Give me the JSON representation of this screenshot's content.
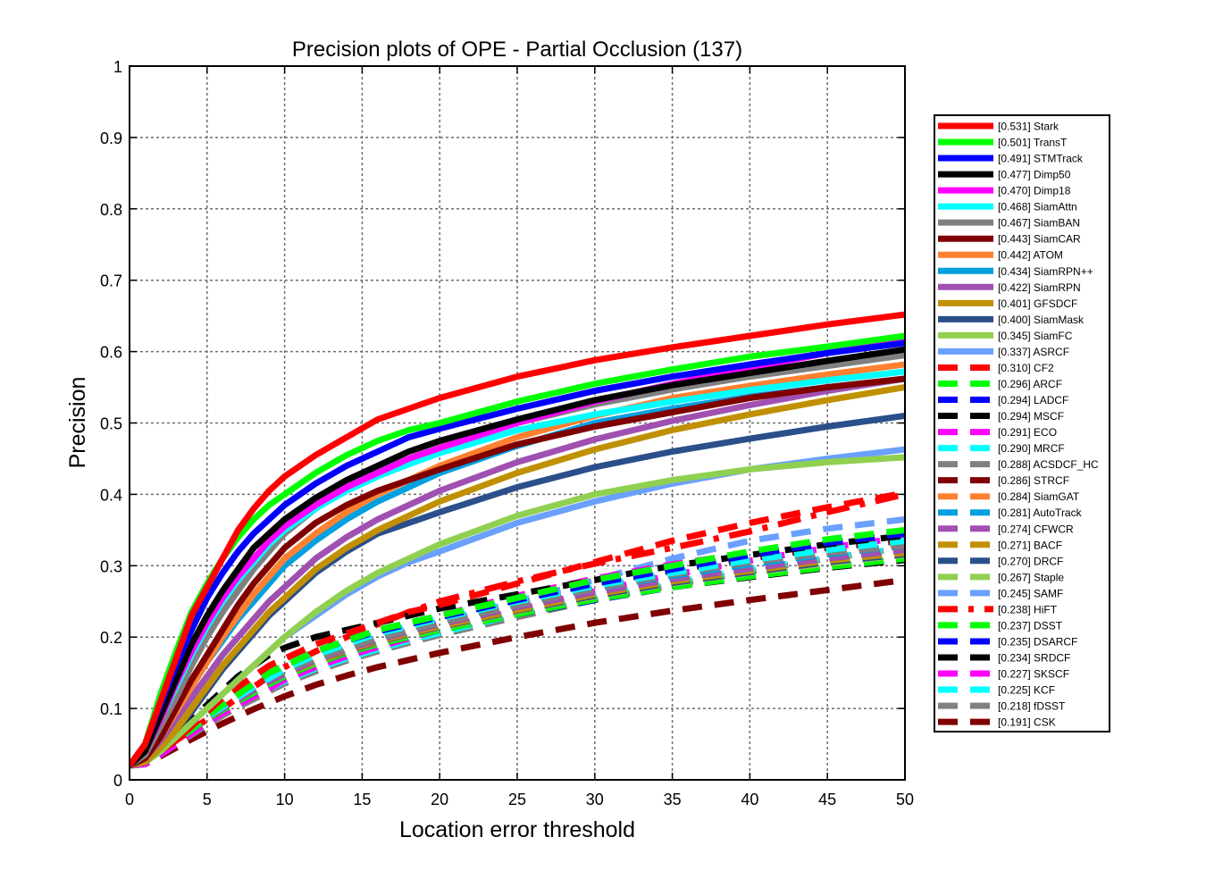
{
  "chart_data": {
    "type": "line",
    "title": "Precision plots of OPE - Partial Occlusion (137)",
    "xlabel": "Location error threshold",
    "ylabel": "Precision",
    "xlim": [
      0,
      50
    ],
    "ylim": [
      0,
      1
    ],
    "xticks": [
      "0",
      "5",
      "10",
      "15",
      "20",
      "25",
      "30",
      "35",
      "40",
      "45",
      "50"
    ],
    "yticks": [
      "0",
      "0.1",
      "0.2",
      "0.3",
      "0.4",
      "0.5",
      "0.6",
      "0.7",
      "0.8",
      "0.9",
      "1"
    ],
    "grid": true,
    "legend_position": "right",
    "x": [
      0,
      1,
      2,
      3,
      4,
      5,
      6,
      7,
      8,
      9,
      10,
      12,
      14,
      16,
      18,
      20,
      25,
      30,
      35,
      40,
      45,
      50
    ],
    "series": [
      {
        "name": "[0.531] Stark",
        "color": "#ff0000",
        "style": "solid",
        "values": [
          0.02,
          0.05,
          0.11,
          0.17,
          0.23,
          0.27,
          0.31,
          0.35,
          0.38,
          0.405,
          0.425,
          0.455,
          0.48,
          0.505,
          0.52,
          0.535,
          0.565,
          0.588,
          0.606,
          0.622,
          0.638,
          0.652
        ]
      },
      {
        "name": "[0.501] TransT",
        "color": "#00ff00",
        "style": "solid",
        "values": [
          0.02,
          0.05,
          0.12,
          0.18,
          0.235,
          0.275,
          0.31,
          0.34,
          0.365,
          0.385,
          0.4,
          0.43,
          0.455,
          0.475,
          0.49,
          0.5,
          0.53,
          0.555,
          0.575,
          0.593,
          0.607,
          0.622
        ]
      },
      {
        "name": "[0.491] STMTrack",
        "color": "#0000ff",
        "style": "solid",
        "values": [
          0.02,
          0.05,
          0.105,
          0.16,
          0.21,
          0.255,
          0.29,
          0.32,
          0.345,
          0.365,
          0.385,
          0.415,
          0.44,
          0.46,
          0.48,
          0.492,
          0.52,
          0.545,
          0.565,
          0.582,
          0.598,
          0.612
        ]
      },
      {
        "name": "[0.477] Dimp50",
        "color": "#000000",
        "style": "solid",
        "values": [
          0.02,
          0.04,
          0.09,
          0.14,
          0.19,
          0.23,
          0.265,
          0.295,
          0.325,
          0.345,
          0.365,
          0.395,
          0.42,
          0.44,
          0.46,
          0.475,
          0.505,
          0.532,
          0.553,
          0.57,
          0.587,
          0.603
        ]
      },
      {
        "name": "[0.470] Dimp18",
        "color": "#ff00ff",
        "style": "solid",
        "values": [
          0.02,
          0.04,
          0.085,
          0.135,
          0.18,
          0.22,
          0.255,
          0.285,
          0.31,
          0.335,
          0.355,
          0.385,
          0.41,
          0.43,
          0.45,
          0.465,
          0.5,
          0.53,
          0.555,
          0.577,
          0.598,
          0.617
        ]
      },
      {
        "name": "[0.468] SiamAttn",
        "color": "#00ffff",
        "style": "solid",
        "values": [
          0.02,
          0.04,
          0.085,
          0.13,
          0.175,
          0.215,
          0.25,
          0.28,
          0.305,
          0.33,
          0.35,
          0.38,
          0.405,
          0.425,
          0.442,
          0.458,
          0.49,
          0.512,
          0.53,
          0.546,
          0.56,
          0.572
        ]
      },
      {
        "name": "[0.467] SiamBAN",
        "color": "#808080",
        "style": "solid",
        "values": [
          0.02,
          0.035,
          0.075,
          0.115,
          0.16,
          0.2,
          0.235,
          0.265,
          0.295,
          0.32,
          0.345,
          0.38,
          0.41,
          0.432,
          0.45,
          0.468,
          0.5,
          0.526,
          0.547,
          0.565,
          0.58,
          0.595
        ]
      },
      {
        "name": "[0.443] SiamCAR",
        "color": "#800000",
        "style": "solid",
        "values": [
          0.02,
          0.03,
          0.06,
          0.1,
          0.14,
          0.175,
          0.21,
          0.245,
          0.275,
          0.3,
          0.325,
          0.36,
          0.385,
          0.405,
          0.42,
          0.435,
          0.47,
          0.495,
          0.515,
          0.535,
          0.55,
          0.562
        ]
      },
      {
        "name": "[0.442] ATOM",
        "color": "#ff8030",
        "style": "solid",
        "values": [
          0.02,
          0.03,
          0.06,
          0.095,
          0.13,
          0.165,
          0.2,
          0.23,
          0.26,
          0.285,
          0.31,
          0.345,
          0.375,
          0.4,
          0.42,
          0.44,
          0.48,
          0.51,
          0.535,
          0.552,
          0.568,
          0.582
        ]
      },
      {
        "name": "[0.434] SiamRPN++",
        "color": "#00a0e0",
        "style": "solid",
        "values": [
          0.02,
          0.03,
          0.06,
          0.095,
          0.13,
          0.165,
          0.195,
          0.225,
          0.25,
          0.275,
          0.3,
          0.335,
          0.365,
          0.39,
          0.41,
          0.43,
          0.468,
          0.5,
          0.52,
          0.537,
          0.55,
          0.562
        ]
      },
      {
        "name": "[0.422] SiamRPN",
        "color": "#a050b0",
        "style": "solid",
        "values": [
          0.02,
          0.03,
          0.055,
          0.085,
          0.115,
          0.145,
          0.175,
          0.2,
          0.225,
          0.25,
          0.27,
          0.31,
          0.34,
          0.365,
          0.385,
          0.405,
          0.445,
          0.477,
          0.503,
          0.525,
          0.545,
          0.562
        ]
      },
      {
        "name": "[0.401] GFSDCF",
        "color": "#c09000",
        "style": "solid",
        "values": [
          0.02,
          0.025,
          0.045,
          0.07,
          0.1,
          0.13,
          0.16,
          0.185,
          0.21,
          0.235,
          0.255,
          0.295,
          0.325,
          0.35,
          0.37,
          0.39,
          0.43,
          0.463,
          0.49,
          0.512,
          0.532,
          0.55
        ]
      },
      {
        "name": "[0.400] SiamMask",
        "color": "#2a4f8a",
        "style": "solid",
        "values": [
          0.02,
          0.025,
          0.045,
          0.07,
          0.095,
          0.125,
          0.155,
          0.18,
          0.205,
          0.23,
          0.25,
          0.29,
          0.32,
          0.345,
          0.36,
          0.375,
          0.41,
          0.438,
          0.46,
          0.478,
          0.495,
          0.51
        ]
      },
      {
        "name": "[0.345] SiamFC",
        "color": "#90d050",
        "style": "solid",
        "values": [
          0.02,
          0.025,
          0.04,
          0.06,
          0.08,
          0.1,
          0.12,
          0.14,
          0.16,
          0.18,
          0.2,
          0.235,
          0.265,
          0.29,
          0.31,
          0.33,
          0.37,
          0.4,
          0.42,
          0.435,
          0.445,
          0.452
        ]
      },
      {
        "name": "[0.337] ASRCF",
        "color": "#6aa0ff",
        "style": "solid",
        "values": [
          0.02,
          0.025,
          0.04,
          0.06,
          0.08,
          0.1,
          0.12,
          0.14,
          0.16,
          0.18,
          0.2,
          0.23,
          0.26,
          0.285,
          0.305,
          0.32,
          0.36,
          0.39,
          0.415,
          0.435,
          0.45,
          0.463
        ]
      },
      {
        "name": "[0.310] CF2",
        "color": "#ff0000",
        "style": "dash",
        "values": [
          0.02,
          0.025,
          0.04,
          0.055,
          0.075,
          0.095,
          0.115,
          0.13,
          0.145,
          0.16,
          0.17,
          0.19,
          0.205,
          0.22,
          0.235,
          0.245,
          0.275,
          0.305,
          0.335,
          0.36,
          0.382,
          0.402
        ]
      },
      {
        "name": "[0.296] ARCF",
        "color": "#00ff00",
        "style": "dash",
        "values": [
          0.02,
          0.025,
          0.04,
          0.055,
          0.07,
          0.09,
          0.105,
          0.12,
          0.135,
          0.15,
          0.16,
          0.18,
          0.195,
          0.21,
          0.22,
          0.23,
          0.255,
          0.28,
          0.3,
          0.32,
          0.337,
          0.35
        ]
      },
      {
        "name": "[0.294] LADCF",
        "color": "#0000ff",
        "style": "dash",
        "values": [
          0.02,
          0.025,
          0.04,
          0.055,
          0.07,
          0.09,
          0.105,
          0.12,
          0.135,
          0.15,
          0.16,
          0.18,
          0.195,
          0.208,
          0.218,
          0.228,
          0.252,
          0.275,
          0.295,
          0.315,
          0.332,
          0.345
        ]
      },
      {
        "name": "[0.294] MSCF",
        "color": "#000000",
        "style": "dash",
        "values": [
          0.02,
          0.025,
          0.045,
          0.065,
          0.085,
          0.105,
          0.125,
          0.145,
          0.16,
          0.175,
          0.185,
          0.2,
          0.21,
          0.22,
          0.23,
          0.24,
          0.26,
          0.28,
          0.3,
          0.315,
          0.33,
          0.342
        ]
      },
      {
        "name": "[0.291] ECO",
        "color": "#ff00ff",
        "style": "dash",
        "values": [
          0.02,
          0.025,
          0.04,
          0.055,
          0.07,
          0.09,
          0.105,
          0.12,
          0.135,
          0.15,
          0.16,
          0.18,
          0.195,
          0.21,
          0.22,
          0.23,
          0.258,
          0.282,
          0.302,
          0.318,
          0.332,
          0.345
        ]
      },
      {
        "name": "[0.290] MRCF",
        "color": "#00ffff",
        "style": "dash",
        "values": [
          0.02,
          0.025,
          0.04,
          0.055,
          0.07,
          0.088,
          0.102,
          0.116,
          0.13,
          0.142,
          0.155,
          0.175,
          0.19,
          0.205,
          0.215,
          0.226,
          0.25,
          0.272,
          0.29,
          0.308,
          0.322,
          0.335
        ]
      },
      {
        "name": "[0.288] ACSDCF_HC",
        "color": "#808080",
        "style": "dash",
        "values": [
          0.02,
          0.025,
          0.04,
          0.055,
          0.07,
          0.088,
          0.102,
          0.116,
          0.13,
          0.142,
          0.152,
          0.17,
          0.185,
          0.198,
          0.21,
          0.22,
          0.245,
          0.268,
          0.288,
          0.305,
          0.318,
          0.328
        ]
      },
      {
        "name": "[0.286] STRCF",
        "color": "#800000",
        "style": "dash",
        "values": [
          0.02,
          0.025,
          0.04,
          0.055,
          0.07,
          0.09,
          0.105,
          0.12,
          0.135,
          0.15,
          0.16,
          0.18,
          0.195,
          0.208,
          0.218,
          0.228,
          0.252,
          0.275,
          0.293,
          0.31,
          0.325,
          0.335
        ]
      },
      {
        "name": "[0.284] SiamGAT",
        "color": "#ff8030",
        "style": "dash",
        "values": [
          0.02,
          0.025,
          0.04,
          0.055,
          0.07,
          0.088,
          0.102,
          0.116,
          0.13,
          0.142,
          0.155,
          0.175,
          0.19,
          0.205,
          0.215,
          0.225,
          0.25,
          0.272,
          0.29,
          0.307,
          0.32,
          0.332
        ]
      },
      {
        "name": "[0.281] AutoTrack",
        "color": "#00a0e0",
        "style": "dash",
        "values": [
          0.02,
          0.025,
          0.04,
          0.055,
          0.07,
          0.088,
          0.102,
          0.116,
          0.13,
          0.142,
          0.152,
          0.172,
          0.188,
          0.2,
          0.212,
          0.222,
          0.246,
          0.268,
          0.286,
          0.302,
          0.316,
          0.328
        ]
      },
      {
        "name": "[0.274] CFWCR",
        "color": "#a050b0",
        "style": "dash",
        "values": [
          0.02,
          0.025,
          0.04,
          0.055,
          0.07,
          0.087,
          0.1,
          0.113,
          0.126,
          0.138,
          0.148,
          0.168,
          0.183,
          0.196,
          0.208,
          0.218,
          0.242,
          0.263,
          0.281,
          0.296,
          0.31,
          0.322
        ]
      },
      {
        "name": "[0.271] BACF",
        "color": "#c09000",
        "style": "dash",
        "values": [
          0.02,
          0.025,
          0.04,
          0.055,
          0.07,
          0.087,
          0.1,
          0.113,
          0.126,
          0.138,
          0.148,
          0.166,
          0.181,
          0.194,
          0.205,
          0.215,
          0.238,
          0.26,
          0.278,
          0.293,
          0.307,
          0.318
        ]
      },
      {
        "name": "[0.270] DRCF",
        "color": "#2a4f8a",
        "style": "dash",
        "values": [
          0.02,
          0.025,
          0.04,
          0.055,
          0.07,
          0.087,
          0.1,
          0.113,
          0.126,
          0.138,
          0.148,
          0.166,
          0.18,
          0.193,
          0.204,
          0.214,
          0.237,
          0.258,
          0.276,
          0.291,
          0.305,
          0.316
        ]
      },
      {
        "name": "[0.267] Staple",
        "color": "#90d050",
        "style": "dash",
        "values": [
          0.02,
          0.025,
          0.04,
          0.055,
          0.07,
          0.087,
          0.1,
          0.113,
          0.126,
          0.138,
          0.148,
          0.165,
          0.18,
          0.192,
          0.203,
          0.213,
          0.236,
          0.257,
          0.275,
          0.29,
          0.303,
          0.315
        ]
      },
      {
        "name": "[0.245] SAMF",
        "color": "#6aa0ff",
        "style": "dash",
        "values": [
          0.02,
          0.025,
          0.04,
          0.055,
          0.07,
          0.087,
          0.1,
          0.113,
          0.126,
          0.138,
          0.148,
          0.166,
          0.182,
          0.196,
          0.208,
          0.22,
          0.25,
          0.28,
          0.31,
          0.335,
          0.352,
          0.365
        ]
      },
      {
        "name": "[0.238] HiFT",
        "color": "#ff0000",
        "style": "dashdot",
        "values": [
          0.02,
          0.025,
          0.04,
          0.055,
          0.07,
          0.085,
          0.1,
          0.115,
          0.13,
          0.145,
          0.158,
          0.18,
          0.2,
          0.218,
          0.235,
          0.25,
          0.278,
          0.303,
          0.325,
          0.348,
          0.375,
          0.4
        ]
      },
      {
        "name": "[0.237] DSST",
        "color": "#00ff00",
        "style": "dash",
        "values": [
          0.02,
          0.025,
          0.04,
          0.055,
          0.07,
          0.085,
          0.098,
          0.11,
          0.122,
          0.134,
          0.145,
          0.163,
          0.178,
          0.19,
          0.2,
          0.21,
          0.232,
          0.253,
          0.27,
          0.285,
          0.298,
          0.31
        ]
      },
      {
        "name": "[0.235] DSARCF",
        "color": "#0000ff",
        "style": "dash",
        "values": [
          0.02,
          0.025,
          0.04,
          0.055,
          0.07,
          0.085,
          0.098,
          0.11,
          0.122,
          0.134,
          0.145,
          0.163,
          0.178,
          0.19,
          0.2,
          0.21,
          0.232,
          0.252,
          0.27,
          0.285,
          0.298,
          0.31
        ]
      },
      {
        "name": "[0.234] SRDCF",
        "color": "#000000",
        "style": "dash",
        "values": [
          0.02,
          0.025,
          0.04,
          0.055,
          0.07,
          0.085,
          0.098,
          0.11,
          0.122,
          0.134,
          0.145,
          0.163,
          0.178,
          0.19,
          0.2,
          0.21,
          0.232,
          0.252,
          0.27,
          0.284,
          0.297,
          0.308
        ]
      },
      {
        "name": "[0.227] SKSCF",
        "color": "#ff00ff",
        "style": "dash",
        "values": [
          0.02,
          0.022,
          0.035,
          0.05,
          0.065,
          0.08,
          0.093,
          0.105,
          0.117,
          0.128,
          0.14,
          0.158,
          0.173,
          0.186,
          0.198,
          0.21,
          0.238,
          0.264,
          0.287,
          0.307,
          0.325,
          0.34
        ]
      },
      {
        "name": "[0.225] KCF",
        "color": "#00ffff",
        "style": "dash",
        "values": [
          0.02,
          0.022,
          0.035,
          0.05,
          0.065,
          0.08,
          0.093,
          0.105,
          0.117,
          0.128,
          0.138,
          0.156,
          0.17,
          0.183,
          0.195,
          0.206,
          0.232,
          0.256,
          0.276,
          0.295,
          0.311,
          0.325
        ]
      },
      {
        "name": "[0.218] fDSST",
        "color": "#808080",
        "style": "dash",
        "values": [
          0.02,
          0.022,
          0.035,
          0.05,
          0.063,
          0.077,
          0.09,
          0.102,
          0.113,
          0.124,
          0.135,
          0.152,
          0.167,
          0.18,
          0.192,
          0.203,
          0.228,
          0.252,
          0.273,
          0.292,
          0.31,
          0.325
        ]
      },
      {
        "name": "[0.191] CSK",
        "color": "#800000",
        "style": "dash",
        "values": [
          0.02,
          0.022,
          0.033,
          0.045,
          0.057,
          0.068,
          0.079,
          0.089,
          0.099,
          0.108,
          0.117,
          0.133,
          0.146,
          0.158,
          0.168,
          0.178,
          0.2,
          0.22,
          0.237,
          0.252,
          0.266,
          0.28
        ]
      }
    ]
  }
}
